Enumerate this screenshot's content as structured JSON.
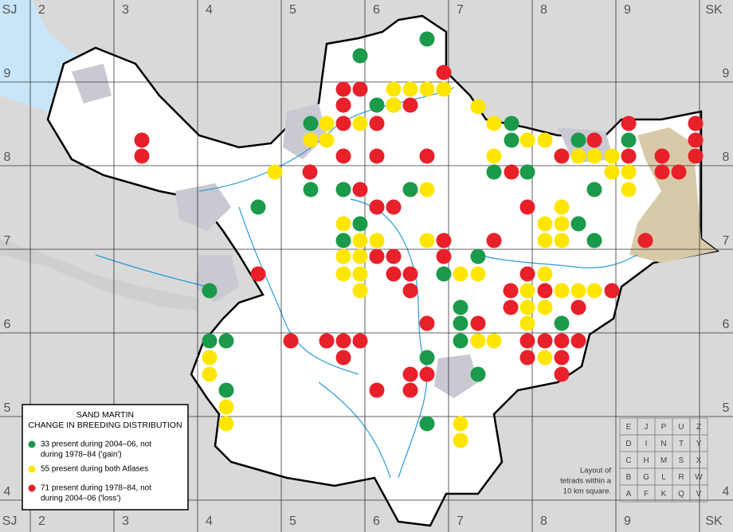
{
  "grid_labels": {
    "top": [
      "SJ",
      "2",
      "3",
      "4",
      "5",
      "6",
      "7",
      "8",
      "9",
      "SK"
    ],
    "side": [
      "9",
      "8",
      "7",
      "6",
      "5",
      "4"
    ]
  },
  "legend": {
    "title": [
      "SAND MARTIN",
      "CHANGE IN BREEDING DISTRIBUTION"
    ],
    "items": [
      {
        "lines": [
          "33 present during 2004–06, not",
          "during 1978–84 ('gain')"
        ]
      },
      {
        "lines": [
          "55 present during both Atlases"
        ]
      },
      {
        "lines": [
          "71 present during 1978–84, not",
          "during 2004–06 ('loss')"
        ]
      }
    ]
  },
  "tetrad_key": {
    "rows": [
      [
        "E",
        "J",
        "P",
        "U",
        "Z"
      ],
      [
        "D",
        "I",
        "N",
        "T",
        "Y"
      ],
      [
        "C",
        "H",
        "M",
        "S",
        "X"
      ],
      [
        "B",
        "G",
        "L",
        "R",
        "W"
      ],
      [
        "A",
        "F",
        "K",
        "Q",
        "V"
      ]
    ],
    "caption": [
      "Layout of",
      "tetrads within a",
      "10 km square."
    ]
  }
}
